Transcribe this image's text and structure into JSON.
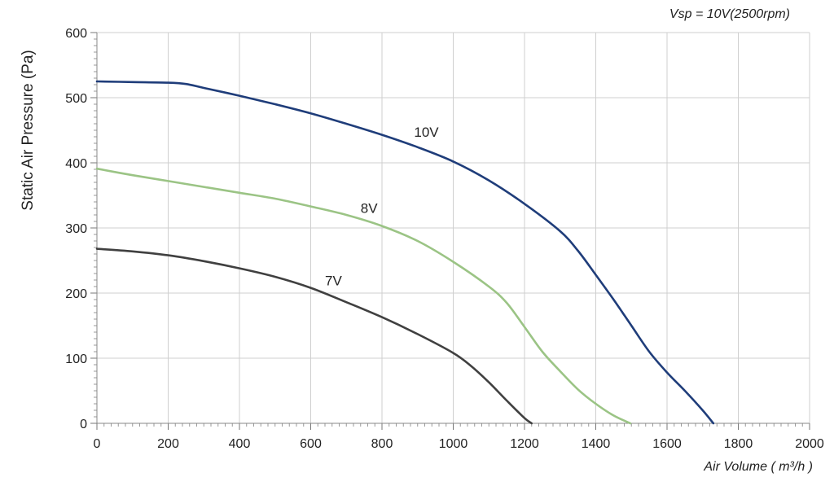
{
  "chart_data": {
    "type": "line",
    "title": "",
    "annotation": "Vsp = 10V(2500rpm)",
    "xlabel": "Air Volume ( m³/h )",
    "ylabel": "Static Air Pressure  (Pa)",
    "xlim": [
      0,
      2000
    ],
    "ylim": [
      0,
      600
    ],
    "x_ticks": [
      0,
      200,
      400,
      600,
      800,
      1000,
      1200,
      1400,
      1600,
      1800,
      2000
    ],
    "y_ticks": [
      0,
      100,
      200,
      300,
      400,
      500,
      600
    ],
    "grid": true,
    "series": [
      {
        "name": "10V",
        "color": "#1f3d7a",
        "label_at": [
          890,
          440
        ],
        "x": [
          0,
          100,
          200,
          250,
          300,
          400,
          500,
          600,
          700,
          800,
          900,
          1000,
          1100,
          1200,
          1300,
          1350,
          1400,
          1450,
          1500,
          1550,
          1600,
          1650,
          1700,
          1730
        ],
        "y": [
          525,
          524,
          523,
          521,
          515,
          503,
          490,
          476,
          460,
          443,
          424,
          402,
          373,
          337,
          295,
          265,
          228,
          190,
          150,
          110,
          78,
          50,
          20,
          0
        ]
      },
      {
        "name": "8V",
        "color": "#9bc485",
        "label_at": [
          740,
          323
        ],
        "x": [
          0,
          100,
          200,
          300,
          400,
          500,
          600,
          700,
          800,
          900,
          1000,
          1100,
          1150,
          1200,
          1250,
          1300,
          1350,
          1400,
          1450,
          1497
        ],
        "y": [
          391,
          381,
          372,
          363,
          354,
          345,
          333,
          320,
          303,
          280,
          248,
          210,
          185,
          148,
          110,
          80,
          52,
          30,
          12,
          0
        ]
      },
      {
        "name": "7V",
        "color": "#404040",
        "label_at": [
          640,
          212
        ],
        "x": [
          0,
          100,
          200,
          300,
          400,
          500,
          600,
          700,
          800,
          900,
          1000,
          1050,
          1100,
          1150,
          1200,
          1220
        ],
        "y": [
          268,
          264,
          258,
          249,
          238,
          225,
          208,
          186,
          163,
          137,
          108,
          88,
          63,
          35,
          8,
          0
        ]
      }
    ]
  }
}
